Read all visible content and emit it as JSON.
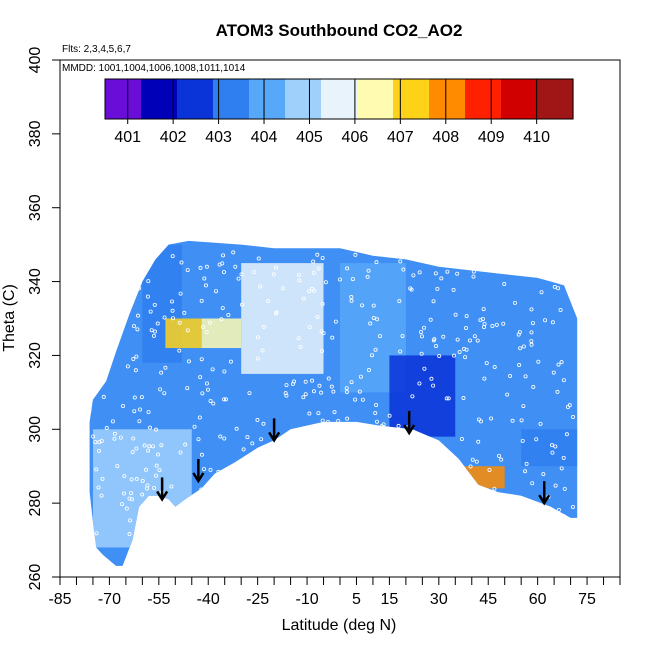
{
  "chart_data": {
    "type": "heatmap",
    "title": "ATOM3 Southbound CO2_AO2",
    "annotations": {
      "flights": "Flts: 2,3,4,5,6,7",
      "dates": "MMDD: 1001,1004,1006,1008,1011,1014"
    },
    "xlabel": "Latitude (deg N)",
    "ylabel": "Theta (C)",
    "xlim": [
      -85,
      85
    ],
    "ylim": [
      260,
      400
    ],
    "x_ticks": [
      "-85",
      "-70",
      "-55",
      "-40",
      "-25",
      "-10",
      "5",
      "15",
      "30",
      "45",
      "60",
      "75"
    ],
    "x_tick_values": [
      -85,
      -70,
      -55,
      -40,
      -25,
      -10,
      5,
      15,
      30,
      45,
      60,
      75
    ],
    "y_ticks": [
      "260",
      "280",
      "300",
      "320",
      "340",
      "360",
      "380",
      "400"
    ],
    "y_tick_values": [
      260,
      280,
      300,
      320,
      340,
      360,
      380,
      400
    ],
    "colorbar": {
      "ticks": [
        "401",
        "402",
        "403",
        "404",
        "405",
        "406",
        "407",
        "408",
        "409",
        "410"
      ],
      "values": [
        401,
        402,
        403,
        404,
        405,
        406,
        407,
        408,
        409,
        410
      ],
      "colors": [
        "#6a0dd8",
        "#0000b8",
        "#0a33d8",
        "#2f7ff0",
        "#57a8f8",
        "#9fd0fb",
        "#e8f3fb",
        "#fffbb0",
        "#ffd21a",
        "#ff8c00",
        "#ff2000",
        "#d00000",
        "#a01515"
      ]
    },
    "tropopause_arrows": [
      {
        "lat": -54,
        "theta": 281
      },
      {
        "lat": -43,
        "theta": 286
      },
      {
        "lat": -20,
        "theta": 297
      },
      {
        "lat": 21,
        "theta": 299
      },
      {
        "lat": 62,
        "theta": 280
      }
    ],
    "field_regions": [
      {
        "lat": [
          -60,
          -48
        ],
        "theta": [
          318,
          350
        ],
        "co2": 403.2
      },
      {
        "lat": [
          -53,
          -42
        ],
        "theta": [
          322,
          330
        ],
        "co2": 407.0
      },
      {
        "lat": [
          -42,
          -30
        ],
        "theta": [
          322,
          330
        ],
        "co2": 406.3
      },
      {
        "lat": [
          -30,
          -5
        ],
        "theta": [
          315,
          345
        ],
        "co2": 405.3
      },
      {
        "lat": [
          0,
          20
        ],
        "theta": [
          310,
          345
        ],
        "co2": 404.2
      },
      {
        "lat": [
          15,
          35
        ],
        "theta": [
          298,
          320
        ],
        "co2": 402.8
      },
      {
        "lat": [
          35,
          50
        ],
        "theta": [
          284,
          290
        ],
        "co2": 407.8
      },
      {
        "lat": [
          55,
          72
        ],
        "theta": [
          290,
          300
        ],
        "co2": 402.9
      },
      {
        "lat": [
          -75,
          -45
        ],
        "theta": [
          268,
          300
        ],
        "co2": 404.5
      }
    ]
  }
}
